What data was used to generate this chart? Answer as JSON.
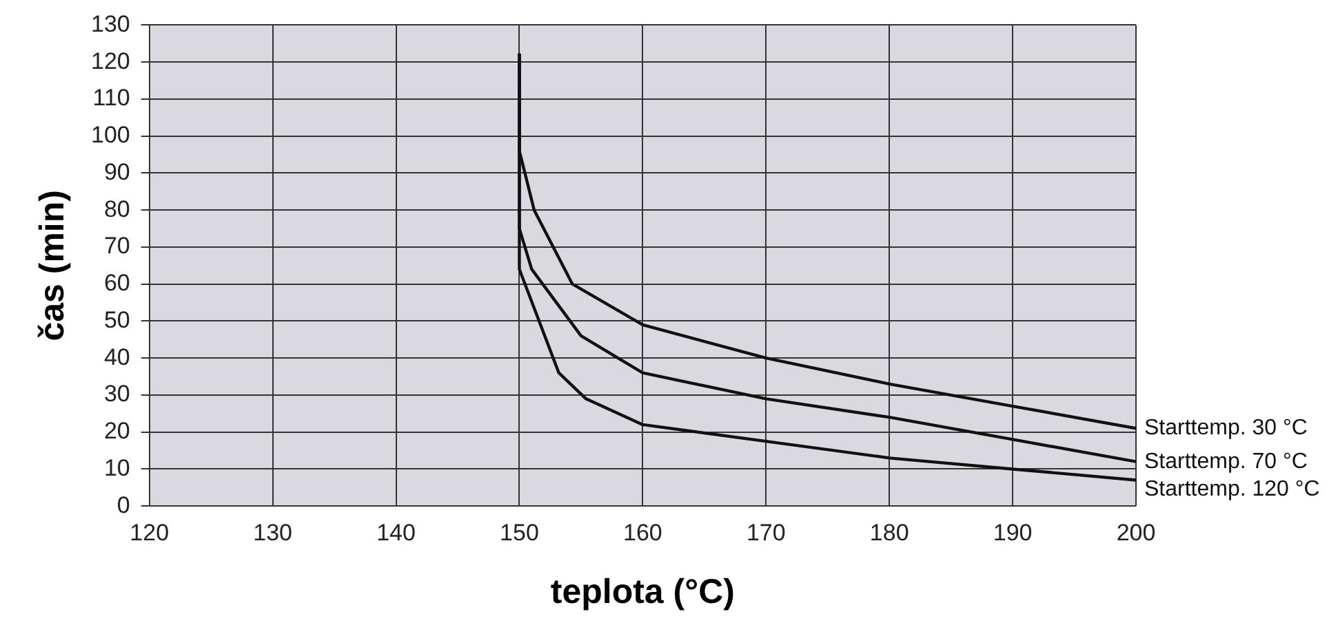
{
  "chart_data": {
    "type": "line",
    "xlabel": "teplota (°C)",
    "ylabel": "čas (min)",
    "xlim": [
      120,
      200
    ],
    "xticks": [
      120,
      130,
      140,
      150,
      160,
      170,
      180,
      190,
      200
    ],
    "ylim": [
      0,
      130
    ],
    "yticks": [
      0,
      10,
      20,
      30,
      40,
      50,
      60,
      70,
      80,
      90,
      100,
      110,
      120,
      130
    ],
    "grid": true,
    "legend": false,
    "marker": "none",
    "line_style": "solid",
    "series": [
      {
        "name": "Starttemp. 30 °C",
        "color": "#111111",
        "x": [
          150,
          150,
          151.2,
          154.3,
          160,
          170,
          180,
          190,
          200
        ],
        "values": [
          122,
          96,
          80,
          60,
          49,
          40,
          33,
          27,
          21
        ]
      },
      {
        "name": "Starttemp. 70 °C",
        "color": "#111111",
        "x": [
          150,
          150,
          151,
          155,
          160,
          170,
          180,
          190,
          200
        ],
        "values": [
          122,
          75,
          64,
          46,
          36,
          29,
          24,
          18,
          12
        ]
      },
      {
        "name": "Starttemp. 120 °C",
        "color": "#111111",
        "x": [
          150,
          150,
          153.2,
          155.4,
          160,
          170,
          180,
          190,
          200
        ],
        "values": [
          122,
          64,
          36,
          29,
          22,
          17.5,
          13,
          10,
          7
        ]
      }
    ]
  }
}
